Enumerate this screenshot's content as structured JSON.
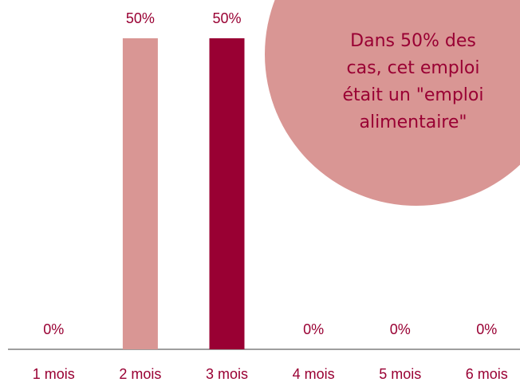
{
  "chart_data": {
    "type": "bar",
    "categories": [
      "1 mois",
      "2 mois",
      "3 mois",
      "4 mois",
      "5 mois",
      "6 mois"
    ],
    "values": [
      0,
      50,
      50,
      0,
      0,
      0
    ],
    "value_labels": [
      "0%",
      "50%",
      "50%",
      "0%",
      "0%",
      "0%"
    ],
    "colors": [
      "#d99694",
      "#d99694",
      "#990033",
      "#d99694",
      "#d99694",
      "#d99694"
    ],
    "annotation": [
      "Dans 50% des",
      "cas, cet emploi",
      "était un \"emploi",
      "alimentaire\""
    ],
    "annotation_color": "#d99694"
  }
}
